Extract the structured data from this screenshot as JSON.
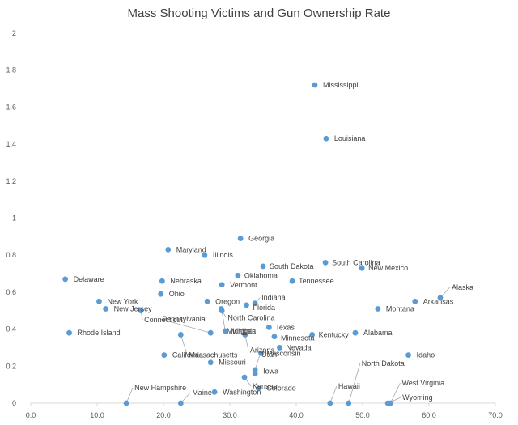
{
  "chart_data": {
    "type": "scatter",
    "title": "Mass Shooting Victims and Gun Ownership Rate",
    "xlabel": "",
    "ylabel": "",
    "xlim": [
      0,
      70
    ],
    "ylim": [
      0,
      2
    ],
    "xticks": [
      "0.0",
      "10.0",
      "20.0",
      "30.0",
      "40.0",
      "50.0",
      "60.0",
      "70.0"
    ],
    "yticks": [
      "0",
      "0.2",
      "0.4",
      "0.6",
      "0.8",
      "1",
      "1.2",
      "1.4",
      "1.6",
      "1.8",
      "2"
    ],
    "grid": false,
    "marker_color": "#5b9bd5",
    "points": [
      {
        "name": "Mississippi",
        "x": 42.8,
        "y": 1.72
      },
      {
        "name": "Louisiana",
        "x": 44.5,
        "y": 1.43
      },
      {
        "name": "Georgia",
        "x": 31.6,
        "y": 0.89
      },
      {
        "name": "Maryland",
        "x": 20.7,
        "y": 0.83
      },
      {
        "name": "Illinois",
        "x": 26.2,
        "y": 0.8
      },
      {
        "name": "South Carolina",
        "x": 44.4,
        "y": 0.76
      },
      {
        "name": "South Dakota",
        "x": 35.0,
        "y": 0.74
      },
      {
        "name": "New Mexico",
        "x": 49.9,
        "y": 0.73
      },
      {
        "name": "Oklahoma",
        "x": 31.2,
        "y": 0.69
      },
      {
        "name": "Delaware",
        "x": 5.2,
        "y": 0.67
      },
      {
        "name": "Tennessee",
        "x": 39.4,
        "y": 0.66
      },
      {
        "name": "Nebraska",
        "x": 19.8,
        "y": 0.66
      },
      {
        "name": "Vermont",
        "x": 28.8,
        "y": 0.64
      },
      {
        "name": "Ohio",
        "x": 19.6,
        "y": 0.59
      },
      {
        "name": "Alaska",
        "x": 61.7,
        "y": 0.57
      },
      {
        "name": "New York",
        "x": 10.3,
        "y": 0.55
      },
      {
        "name": "Oregon",
        "x": 26.6,
        "y": 0.55
      },
      {
        "name": "Arkansas",
        "x": 57.9,
        "y": 0.55
      },
      {
        "name": "Indiana",
        "x": 33.8,
        "y": 0.54
      },
      {
        "name": "Florida",
        "x": 32.5,
        "y": 0.53
      },
      {
        "name": "New Jersey",
        "x": 11.3,
        "y": 0.51
      },
      {
        "name": "North Carolina",
        "x": 28.7,
        "y": 0.51
      },
      {
        "name": "Montana",
        "x": 52.3,
        "y": 0.51
      },
      {
        "name": "Connecticut",
        "x": 16.6,
        "y": 0.5
      },
      {
        "name": "Michigan",
        "x": 28.8,
        "y": 0.5
      },
      {
        "name": "Texas",
        "x": 35.9,
        "y": 0.41
      },
      {
        "name": "Rhode Island",
        "x": 5.8,
        "y": 0.38
      },
      {
        "name": "Pennsylvania",
        "x": 27.1,
        "y": 0.38
      },
      {
        "name": "Virginia",
        "x": 29.3,
        "y": 0.39
      },
      {
        "name": "Alabama",
        "x": 48.9,
        "y": 0.38
      },
      {
        "name": "Massachusetts",
        "x": 22.6,
        "y": 0.37
      },
      {
        "name": "Kentucky",
        "x": 42.4,
        "y": 0.37
      },
      {
        "name": "Arizona",
        "x": 32.3,
        "y": 0.37
      },
      {
        "name": "Minnesota",
        "x": 36.7,
        "y": 0.36
      },
      {
        "name": "Nevada",
        "x": 37.5,
        "y": 0.3
      },
      {
        "name": "California",
        "x": 20.1,
        "y": 0.26
      },
      {
        "name": "Wisconsin",
        "x": 34.7,
        "y": 0.27
      },
      {
        "name": "Idaho",
        "x": 56.9,
        "y": 0.26
      },
      {
        "name": "Missouri",
        "x": 27.1,
        "y": 0.22
      },
      {
        "name": "Utah",
        "x": 33.8,
        "y": 0.18
      },
      {
        "name": "Iowa",
        "x": 33.8,
        "y": 0.16
      },
      {
        "name": "Kansas",
        "x": 32.2,
        "y": 0.14
      },
      {
        "name": "Colorado",
        "x": 34.3,
        "y": 0.08
      },
      {
        "name": "Washington",
        "x": 27.7,
        "y": 0.06
      },
      {
        "name": "New Hampshire",
        "x": 14.4,
        "y": 0.0
      },
      {
        "name": "Maine",
        "x": 22.6,
        "y": 0.0
      },
      {
        "name": "Hawaii",
        "x": 45.1,
        "y": 0.0
      },
      {
        "name": "North Dakota",
        "x": 47.9,
        "y": 0.0
      },
      {
        "name": "West Virginia",
        "x": 54.2,
        "y": 0.0
      },
      {
        "name": "Wyoming",
        "x": 53.8,
        "y": 0.0
      }
    ]
  }
}
